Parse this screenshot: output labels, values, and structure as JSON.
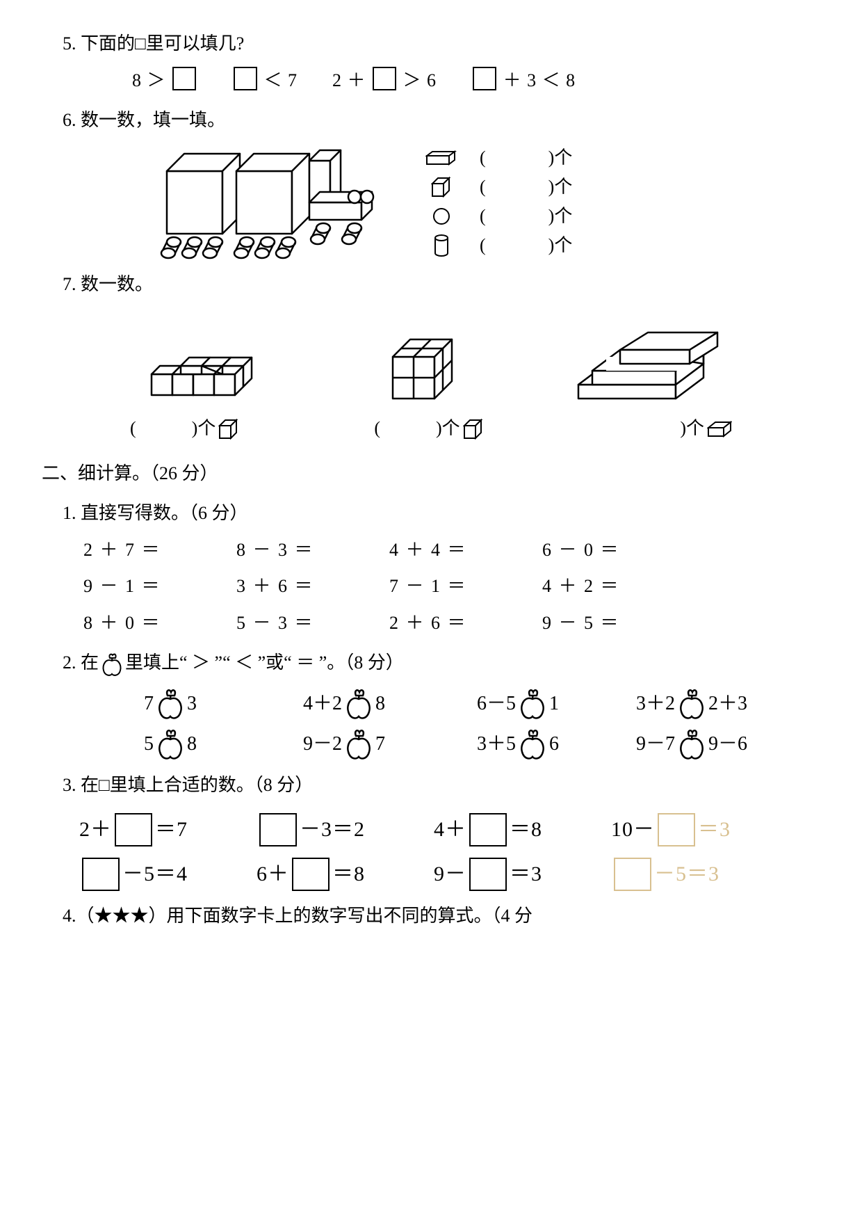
{
  "q5": {
    "prompt": "5. 下面的□里可以填几?",
    "items": [
      "8 ＞ □",
      "□ ＜ 7",
      "2 ＋ □ ＞ 6",
      "□ ＋ 3 ＜ 8"
    ]
  },
  "q6": {
    "prompt": "6. 数一数，填一填。",
    "shapes": [
      {
        "name": "cuboid-icon",
        "label_before": "(",
        "label_after": ")个"
      },
      {
        "name": "cube-icon",
        "label_before": "(",
        "label_after": ")个"
      },
      {
        "name": "circle-icon",
        "label_before": "(",
        "label_after": ")个"
      },
      {
        "name": "cylinder-icon",
        "label_before": "(",
        "label_after": ")个"
      }
    ]
  },
  "q7": {
    "prompt": "7. 数一数。",
    "labels": [
      {
        "open": "(",
        "close": ")个"
      },
      {
        "open": "(",
        "close": ")个"
      },
      {
        "open": "(",
        "close": ")个"
      }
    ]
  },
  "section2_hdr": "二、细计算。（26 分）",
  "q2_1": {
    "prompt": "1. 直接写得数。（6 分）",
    "rows": [
      [
        "2 ＋ 7 ＝",
        "8 － 3 ＝",
        "4 ＋ 4 ＝",
        "6 － 0 ＝"
      ],
      [
        "9 － 1 ＝",
        "3 ＋ 6 ＝",
        "7 － 1 ＝",
        "4 ＋ 2 ＝"
      ],
      [
        "8 ＋ 0 ＝",
        "5 － 3 ＝",
        "2 ＋ 6 ＝",
        "9 － 5 ＝"
      ]
    ]
  },
  "q2_2": {
    "prefix": "2. 在",
    "suffix": "里填上“ ＞ ”“ ＜ ”或“ ＝ ”。（8 分）",
    "rows": [
      [
        {
          "l": "7",
          "r": "3"
        },
        {
          "l": "4＋2",
          "r": "8"
        },
        {
          "l": "6－5",
          "r": "1"
        },
        {
          "l": "3＋2",
          "r": "2＋3"
        }
      ],
      [
        {
          "l": "5",
          "r": "8"
        },
        {
          "l": "9－2",
          "r": "7"
        },
        {
          "l": "3＋5",
          "r": "6"
        },
        {
          "l": "9－7",
          "r": "9－6"
        }
      ]
    ]
  },
  "q2_3": {
    "prompt": "3. 在□里填上合适的数。（8 分）",
    "rows": [
      [
        {
          "pre": "2＋",
          "mid": "",
          "post": "＝7",
          "faded": false
        },
        {
          "pre": "",
          "mid": "",
          "post": "－3＝2",
          "faded": false
        },
        {
          "pre": "4＋",
          "mid": "",
          "post": "＝8",
          "faded": false
        },
        {
          "pre": "10－",
          "mid": "",
          "post": "＝3",
          "faded": true
        }
      ],
      [
        {
          "pre": "",
          "mid": "",
          "post": "－5＝4",
          "faded": false
        },
        {
          "pre": "6＋",
          "mid": "",
          "post": "＝8",
          "faded": false
        },
        {
          "pre": "9－",
          "mid": "",
          "post": "＝3",
          "faded": false
        },
        {
          "pre": "",
          "mid": "",
          "post": "－5＝3",
          "faded": true
        }
      ]
    ]
  },
  "q2_4": {
    "prompt": "4.（★★★）用下面数字卡上的数字写出不同的算式。（4 分"
  },
  "colors": {
    "ink": "#000000",
    "faded": "#d8c090",
    "background": "#ffffff"
  }
}
